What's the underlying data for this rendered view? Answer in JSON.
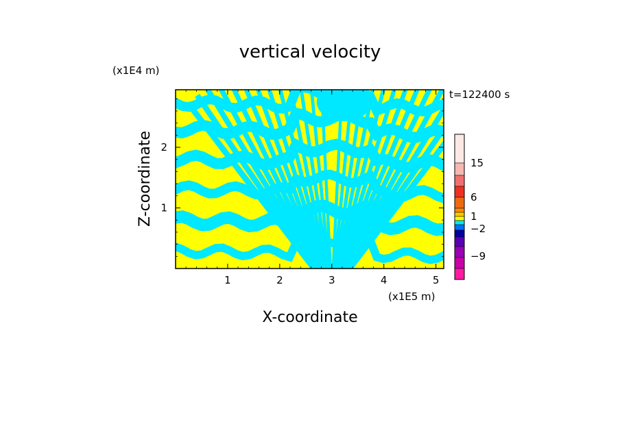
{
  "chart_data": {
    "type": "heatmap",
    "title": "vertical velocity",
    "xlabel": "X-coordinate",
    "ylabel": "Z-coordinate",
    "x_unit": "(x1E5 m)",
    "y_unit": "(x1E4 m)",
    "time_label": "t=122400 s",
    "xlim": [
      0,
      5.15
    ],
    "ylim": [
      0,
      2.95
    ],
    "x_ticks": [
      1,
      2,
      3,
      4,
      5
    ],
    "x_tick_labels": [
      "1",
      "2",
      "3",
      "4",
      "5"
    ],
    "y_ticks": [
      1,
      2
    ],
    "y_tick_labels": [
      "1",
      "2"
    ],
    "dominant_fill": {
      "positive": "#ffff00",
      "negative": "#00e8ff"
    },
    "colorbar": {
      "levels_top_to_bottom": [
        {
          "color": "#fde8e4"
        },
        {
          "color": "#f6b8b0"
        },
        {
          "color": "#f07070"
        },
        {
          "color": "#ee3020"
        },
        {
          "color": "#ee6a10"
        },
        {
          "color": "#ff8c00"
        },
        {
          "color": "#ffc800"
        },
        {
          "color": "#ffff00"
        },
        {
          "color": "#00e8ff"
        },
        {
          "color": "#0070ff"
        },
        {
          "color": "#0000a0"
        },
        {
          "color": "#5a00b4"
        },
        {
          "color": "#9a00b4"
        },
        {
          "color": "#c800a8"
        },
        {
          "color": "#ff1aa0"
        }
      ],
      "tick_values": [
        15,
        6,
        1,
        -2,
        -9
      ],
      "tick_labels": [
        "15",
        "6",
        "1",
        "−2",
        "−9"
      ]
    }
  }
}
